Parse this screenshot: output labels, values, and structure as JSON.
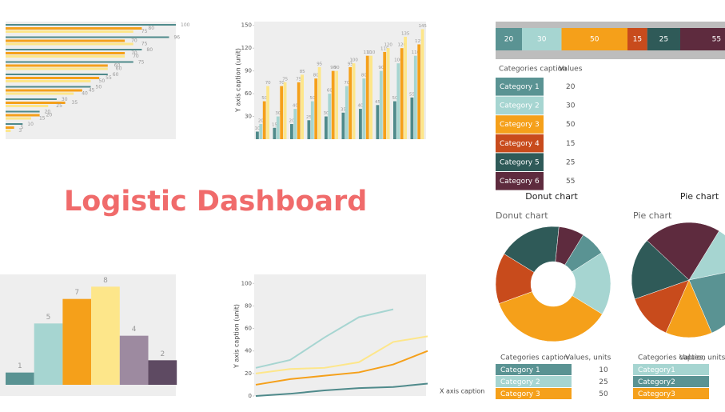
{
  "title": "Logistic Dashboard",
  "chart_data": [
    {
      "type": "hbar",
      "xlim": [
        0,
        100
      ],
      "series": [
        {
          "color": "#4f8a8b",
          "values": [
            100,
            96,
            80,
            75,
            60,
            50,
            30,
            20,
            10
          ]
        },
        {
          "color": "#f5a01a",
          "values": [
            80,
            70,
            70,
            60,
            55,
            45,
            35,
            20,
            5
          ]
        },
        {
          "color": "#fde68a",
          "values": [
            75,
            75,
            70,
            60,
            50,
            40,
            25,
            15,
            3
          ]
        }
      ]
    },
    {
      "type": "bar",
      "ylabel": "Y axis caption (unit)",
      "ylim": [
        0,
        155
      ],
      "yticks": [
        30,
        60,
        90,
        120,
        150
      ],
      "series": [
        {
          "color": "#4f8a8b",
          "values": [
            10,
            15,
            20,
            25,
            30,
            35,
            40,
            45,
            50,
            55
          ]
        },
        {
          "color": "#a6d5d1",
          "values": [
            20,
            30,
            40,
            50,
            60,
            70,
            80,
            90,
            100,
            110
          ]
        },
        {
          "color": "#f5a01a",
          "values": [
            50,
            70,
            75,
            80,
            90,
            95,
            110,
            115,
            120,
            125
          ]
        },
        {
          "color": "#fde68a",
          "values": [
            70,
            75,
            85,
            95,
            90,
            100,
            110,
            120,
            135,
            145
          ]
        }
      ]
    },
    {
      "type": "stacked-hbar",
      "table_header": [
        "Categories caption",
        "Values"
      ],
      "categories": [
        "Category 1",
        "Category 2",
        "Category 3",
        "Category 4",
        "Category 5",
        "Category 6"
      ],
      "values": [
        20,
        30,
        50,
        15,
        25,
        55
      ],
      "colors": [
        "#5a9393",
        "#a6d5d1",
        "#f5a01a",
        "#c84b1c",
        "#2f5a58",
        "#5e2b3e"
      ]
    },
    {
      "type": "donut",
      "title": "Donut chart",
      "subtitle": "Donut chart",
      "table_header": [
        "Categories caption",
        "Values, units"
      ],
      "categories": [
        "Category 1",
        "Category 2",
        "Category 3",
        null,
        null,
        null
      ],
      "values": [
        10,
        25,
        50,
        20,
        25,
        10
      ],
      "colors": [
        "#5a9393",
        "#a6d5d1",
        "#f5a01a",
        "#c84b1c",
        "#2f5a58",
        "#5e2b3e"
      ]
    },
    {
      "type": "pie",
      "title": "Pie chart",
      "subtitle": "Pie chart",
      "table_header": [
        "Categories caption",
        "Values, units"
      ],
      "categories": [
        "Category1",
        "Category2",
        "Category3",
        null,
        null,
        null
      ],
      "values": [
        15,
        25,
        15,
        15,
        20,
        25
      ],
      "colors": [
        "#a6d5d1",
        "#5a9393",
        "#f5a01a",
        "#c84b1c",
        "#2f5a58",
        "#5e2b3e"
      ]
    },
    {
      "type": "column",
      "ylim": [
        0,
        9
      ],
      "values": [
        1,
        5,
        7,
        8,
        4,
        2
      ],
      "colors": [
        "#5a9393",
        "#a6d5d1",
        "#f5a01a",
        "#fde68a",
        "#9d8aa0",
        "#5e4a62"
      ]
    },
    {
      "type": "line",
      "ylabel": "Y axis caption (unit)",
      "xlabel": "X axis caption",
      "ylim": [
        0,
        108
      ],
      "yticks": [
        0,
        20,
        40,
        60,
        80,
        100
      ],
      "categories": [
        null,
        null,
        null,
        null,
        null,
        null
      ],
      "series": [
        {
          "color": "#a6d5d1",
          "values": [
            25,
            32,
            52,
            70,
            77,
            null
          ]
        },
        {
          "color": "#fde68a",
          "values": [
            20,
            24,
            25,
            30,
            48,
            53
          ]
        },
        {
          "color": "#f5a01a",
          "values": [
            10,
            15,
            18,
            21,
            28,
            40
          ]
        },
        {
          "color": "#4f8a8b",
          "values": [
            0,
            2,
            5,
            7,
            8,
            11
          ]
        }
      ]
    }
  ]
}
